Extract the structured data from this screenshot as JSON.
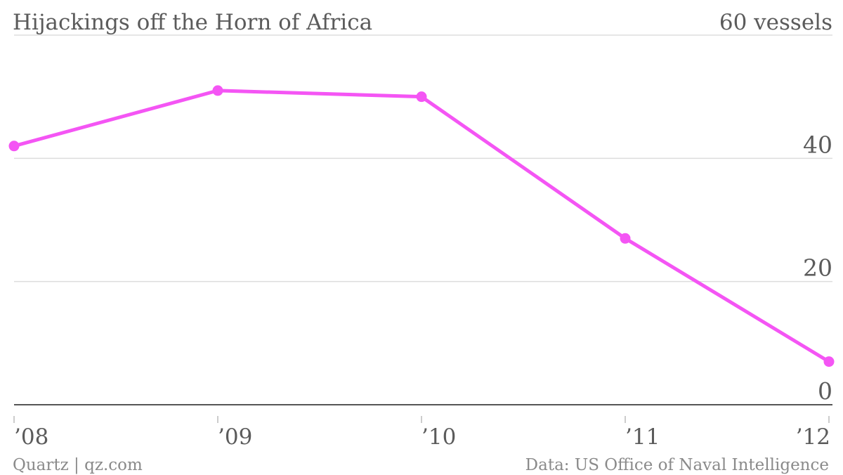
{
  "chart_data": {
    "type": "line",
    "title": "Hijackings off the Horn of Africa",
    "unit_label": "60 vessels",
    "categories": [
      "’08",
      "’09",
      "’10",
      "’11",
      "’12"
    ],
    "series": [
      {
        "values": [
          42,
          51,
          50,
          27,
          7
        ]
      }
    ],
    "y_ticks": [
      {
        "value": 0,
        "label": "0"
      },
      {
        "value": 20,
        "label": "20"
      },
      {
        "value": 40,
        "label": "40"
      },
      {
        "value": 60,
        "label": "60 vessels"
      }
    ],
    "ylim": [
      0,
      60
    ],
    "grid": true,
    "line_color": "#f455f4",
    "grid_color": "#dddddd",
    "axis_color": "#555555",
    "text_color": "#5b5b5b"
  },
  "footer": {
    "source_left": "Quartz | qz.com",
    "source_right": "Data: US Office of Naval Intelligence"
  }
}
